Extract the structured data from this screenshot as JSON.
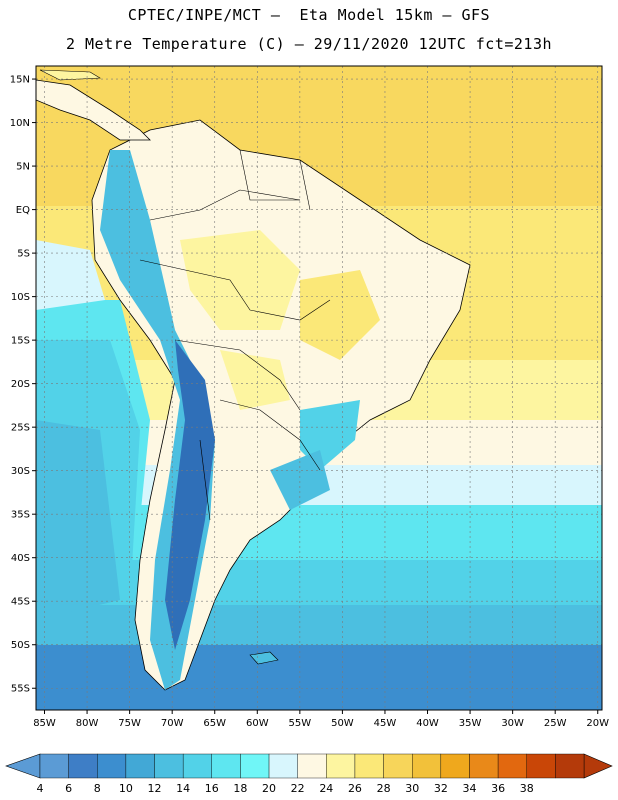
{
  "header": {
    "line1": "CPTEC/INPE/MCT –  Eta Model 15km – GFS",
    "line2": "2 Metre Temperature (C) – 29/11/2020 12UTC fct=213h"
  },
  "map": {
    "lat_ticks": [
      "15N",
      "10N",
      "5N",
      "EQ",
      "5S",
      "10S",
      "15S",
      "20S",
      "25S",
      "30S",
      "35S",
      "40S",
      "45S",
      "50S",
      "55S"
    ],
    "lon_ticks": [
      "85W",
      "80W",
      "75W",
      "70W",
      "65W",
      "60W",
      "55W",
      "50W",
      "45W",
      "40W",
      "35W",
      "30W",
      "25W",
      "20W"
    ],
    "grid": "dotted",
    "extent": {
      "lon": [
        -86,
        -19.5
      ],
      "lat": [
        -57.5,
        16.5
      ]
    }
  },
  "colorbar": {
    "labels": [
      "4",
      "6",
      "8",
      "10",
      "12",
      "14",
      "16",
      "18",
      "20",
      "22",
      "24",
      "26",
      "28",
      "30",
      "32",
      "34",
      "36",
      "38"
    ],
    "colors": [
      "#5b9bd5",
      "#3e7ec6",
      "#3c8ecf",
      "#42a8d6",
      "#4cbfe0",
      "#52d2e8",
      "#5ee6f0",
      "#70f6f7",
      "#d8f6fd",
      "#fef8e3",
      "#fdf5a0",
      "#fbe878",
      "#f7d55a",
      "#f2c13a",
      "#efa81d",
      "#e98919",
      "#e2680f",
      "#c94607",
      "#b43a0a"
    ],
    "min_arrow_color": "#5b9bd5",
    "max_arrow_color": "#b43a0a"
  }
}
